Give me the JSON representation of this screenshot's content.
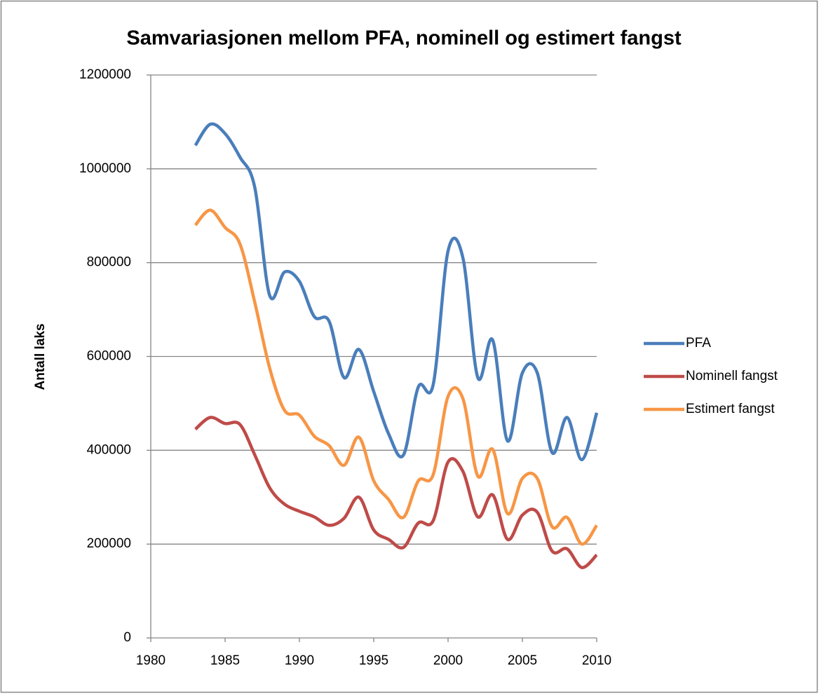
{
  "chart_data": {
    "type": "line",
    "title": "Samvariasjonen mellom PFA, nominell og estimert fangst",
    "y_label": "Antall laks",
    "x": [
      1983,
      1984,
      1985,
      1986,
      1987,
      1988,
      1989,
      1990,
      1991,
      1992,
      1993,
      1994,
      1995,
      1996,
      1997,
      1998,
      1999,
      2000,
      2001,
      2002,
      2003,
      2004,
      2005,
      2006,
      2007,
      2008,
      2009,
      2010
    ],
    "series": [
      {
        "name": "PFA",
        "color": "#4a7ebb",
        "values": [
          1050000,
          1095000,
          1075000,
          1025000,
          960000,
          730000,
          780000,
          760000,
          685000,
          675000,
          555000,
          615000,
          525000,
          435000,
          390000,
          535000,
          540000,
          825000,
          810000,
          555000,
          635000,
          420000,
          565000,
          565000,
          395000,
          470000,
          380000,
          480000
        ]
      },
      {
        "name": "Nominell fangst",
        "color": "#be4b48",
        "values": [
          445000,
          470000,
          457000,
          455000,
          390000,
          320000,
          285000,
          270000,
          258000,
          240000,
          255000,
          300000,
          230000,
          210000,
          193000,
          245000,
          250000,
          375000,
          355000,
          258000,
          305000,
          210000,
          262000,
          268000,
          185000,
          190000,
          150000,
          177000
        ]
      },
      {
        "name": "Estimert fangst",
        "color": "#f79646",
        "values": [
          880000,
          912000,
          875000,
          840000,
          715000,
          575000,
          485000,
          475000,
          430000,
          410000,
          368000,
          428000,
          335000,
          295000,
          257000,
          335000,
          348000,
          515000,
          510000,
          345000,
          402000,
          265000,
          340000,
          340000,
          237000,
          257000,
          200000,
          240000
        ]
      }
    ],
    "xlim": [
      1980,
      2010
    ],
    "xticks": [
      1980,
      1985,
      1990,
      1995,
      2000,
      2005,
      2010
    ],
    "ylim": [
      0,
      1200000
    ],
    "yticks": [
      0,
      200000,
      400000,
      600000,
      800000,
      1000000,
      1200000
    ],
    "grid": true,
    "legend": "right",
    "smooth": true
  }
}
